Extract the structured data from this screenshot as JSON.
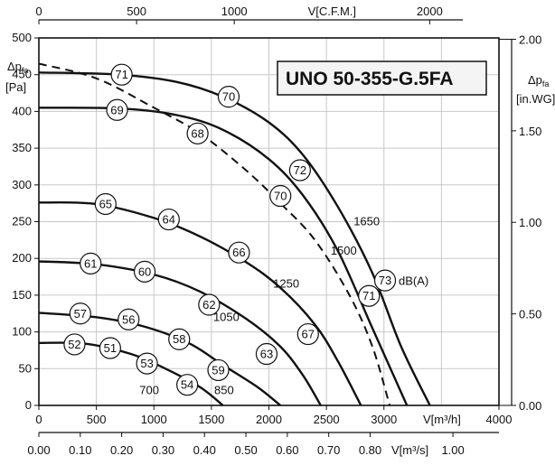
{
  "chart_data": {
    "type": "line",
    "title": "UNO 50-355-G.5FA",
    "axes": {
      "x_main": {
        "label": "V[m³/h]",
        "min": 0,
        "max": 4000,
        "ticks": [
          0,
          500,
          1000,
          1500,
          2000,
          2500,
          3000,
          4000
        ]
      },
      "x_top": {
        "label": "V[C.F.M.]",
        "ticks": [
          0,
          500,
          1000,
          2000
        ]
      },
      "x_bottom": {
        "label": "V[m³/s]",
        "ticks": [
          "0.00",
          "0.10",
          "0.20",
          "0.30",
          "0.40",
          "0.50",
          "0.60",
          "0.70",
          "0.80",
          "1.00"
        ]
      },
      "y_left": {
        "label": "Δp",
        "label_sub": "fa",
        "unit": "[Pa]",
        "min": 0,
        "max": 500,
        "ticks": [
          0,
          50,
          100,
          150,
          200,
          250,
          300,
          350,
          400,
          450,
          500
        ]
      },
      "y_right": {
        "label": "Δp",
        "label_sub": "fa",
        "unit": "[in.WG]",
        "ticks": [
          "0.00",
          "0.50",
          "1.00",
          "1.50",
          "2.00"
        ]
      }
    },
    "grid": true,
    "series": [
      {
        "name": "1650",
        "points": [
          [
            0,
            453
          ],
          [
            700,
            450
          ],
          [
            1200,
            440
          ],
          [
            1600,
            420
          ],
          [
            2000,
            385
          ],
          [
            2300,
            340
          ],
          [
            2600,
            270
          ],
          [
            2900,
            180
          ],
          [
            3150,
            80
          ],
          [
            3400,
            0
          ]
        ]
      },
      {
        "name": "1500",
        "points": [
          [
            0,
            405
          ],
          [
            700,
            404
          ],
          [
            1200,
            395
          ],
          [
            1600,
            375
          ],
          [
            2000,
            335
          ],
          [
            2300,
            285
          ],
          [
            2600,
            210
          ],
          [
            2900,
            105
          ],
          [
            3200,
            0
          ]
        ]
      },
      {
        "name": "1250",
        "points": [
          [
            0,
            276
          ],
          [
            500,
            274
          ],
          [
            1000,
            255
          ],
          [
            1400,
            230
          ],
          [
            1800,
            195
          ],
          [
            2100,
            160
          ],
          [
            2400,
            110
          ],
          [
            2600,
            60
          ],
          [
            2800,
            0
          ]
        ]
      },
      {
        "name": "1050",
        "points": [
          [
            0,
            196
          ],
          [
            500,
            192
          ],
          [
            1000,
            178
          ],
          [
            1400,
            155
          ],
          [
            1800,
            118
          ],
          [
            2100,
            80
          ],
          [
            2300,
            40
          ],
          [
            2450,
            0
          ]
        ]
      },
      {
        "name": "850",
        "points": [
          [
            0,
            126
          ],
          [
            500,
            120
          ],
          [
            900,
            108
          ],
          [
            1300,
            85
          ],
          [
            1600,
            55
          ],
          [
            1900,
            25
          ],
          [
            2100,
            0
          ]
        ]
      },
      {
        "name": "700",
        "points": [
          [
            0,
            85
          ],
          [
            400,
            84
          ],
          [
            800,
            70
          ],
          [
            1100,
            50
          ],
          [
            1400,
            25
          ],
          [
            1600,
            0
          ]
        ]
      },
      {
        "name": "",
        "style": "dashed",
        "points": [
          [
            0,
            465
          ],
          [
            500,
            445
          ],
          [
            1000,
            405
          ],
          [
            1400,
            370
          ],
          [
            1800,
            320
          ],
          [
            2100,
            275
          ],
          [
            2400,
            225
          ],
          [
            2700,
            150
          ],
          [
            2900,
            80
          ],
          [
            3050,
            0
          ]
        ]
      }
    ],
    "rpm_labels": [
      {
        "text": "1650",
        "x": 2850,
        "y": 250
      },
      {
        "text": "1500",
        "x": 2650,
        "y": 210
      },
      {
        "text": "1250",
        "x": 2150,
        "y": 165
      },
      {
        "text": "1050",
        "x": 1630,
        "y": 120
      },
      {
        "text": "850",
        "x": 1610,
        "y": 20
      },
      {
        "text": "700",
        "x": 960,
        "y": 20
      }
    ],
    "db_labels": [
      {
        "value": "71",
        "x": 720,
        "y": 450
      },
      {
        "value": "70",
        "x": 1650,
        "y": 420
      },
      {
        "value": "69",
        "x": 680,
        "y": 402
      },
      {
        "value": "68",
        "x": 1380,
        "y": 370
      },
      {
        "value": "72",
        "x": 2270,
        "y": 320
      },
      {
        "value": "70",
        "x": 2100,
        "y": 285
      },
      {
        "value": "65",
        "x": 580,
        "y": 274
      },
      {
        "value": "64",
        "x": 1130,
        "y": 253
      },
      {
        "value": "66",
        "x": 1740,
        "y": 208
      },
      {
        "value": "61",
        "x": 450,
        "y": 193
      },
      {
        "value": "60",
        "x": 920,
        "y": 182
      },
      {
        "value": "73",
        "x": 3010,
        "y": 170
      },
      {
        "value": "71",
        "x": 2870,
        "y": 149
      },
      {
        "value": "62",
        "x": 1480,
        "y": 137
      },
      {
        "value": "57",
        "x": 360,
        "y": 125
      },
      {
        "value": "56",
        "x": 780,
        "y": 117
      },
      {
        "value": "58",
        "x": 1220,
        "y": 90
      },
      {
        "value": "67",
        "x": 2340,
        "y": 97
      },
      {
        "value": "52",
        "x": 310,
        "y": 83
      },
      {
        "value": "51",
        "x": 620,
        "y": 78
      },
      {
        "value": "63",
        "x": 1980,
        "y": 70
      },
      {
        "value": "53",
        "x": 940,
        "y": 57
      },
      {
        "value": "59",
        "x": 1560,
        "y": 48
      },
      {
        "value": "54",
        "x": 1290,
        "y": 28
      }
    ],
    "db_unit_label": "dB(A)"
  }
}
